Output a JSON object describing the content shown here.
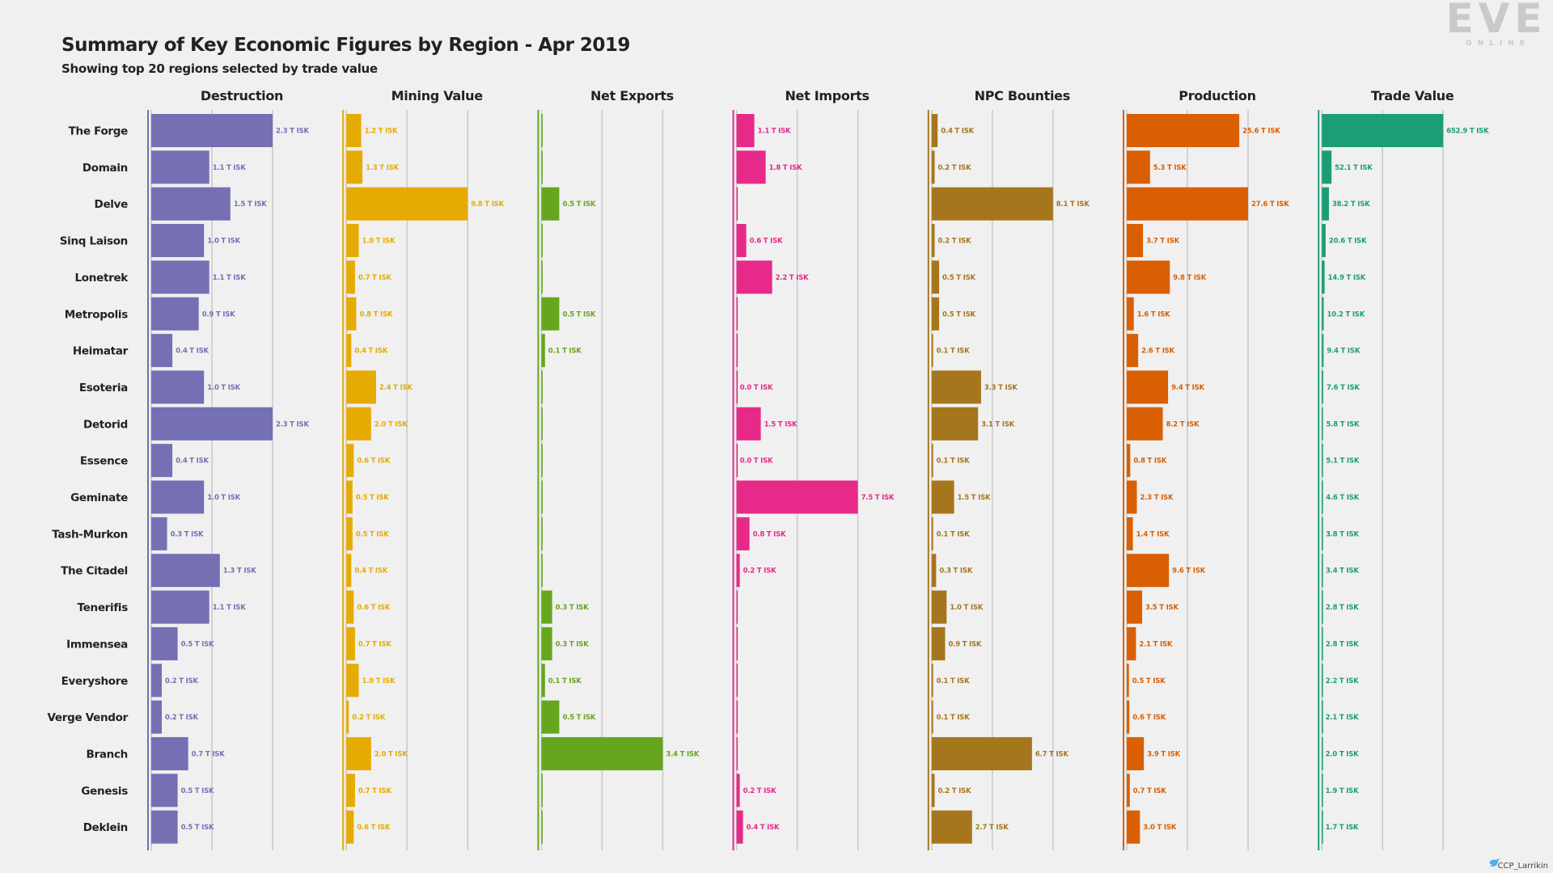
{
  "logo": {
    "main": "EVE",
    "sub": "ONLINE"
  },
  "credit": {
    "icon": "bird-icon",
    "text": "CCP_Larrikin"
  },
  "colors": {
    "Destruction": "#7570b3",
    "Mining Value": "#e6ab02",
    "Net Exports": "#66a61e",
    "Net Imports": "#e7298a",
    "NPC Bounties": "#a6761d",
    "Production": "#d95f02",
    "Trade Value": "#1b9e77"
  },
  "chart_data": {
    "type": "bar",
    "orientation": "horizontal",
    "title": "Summary of Key Economic Figures by Region - Apr 2019",
    "subtitle": "Showing top 20 regions selected by trade value",
    "categories": [
      "The Forge",
      "Domain",
      "Delve",
      "Sinq Laison",
      "Lonetrek",
      "Metropolis",
      "Heimatar",
      "Esoteria",
      "Detorid",
      "Essence",
      "Geminate",
      "Tash-Murkon",
      "The Citadel",
      "Tenerifis",
      "Immensea",
      "Everyshore",
      "Verge Vendor",
      "Branch",
      "Genesis",
      "Deklein"
    ],
    "series": [
      {
        "name": "Destruction",
        "scale_max": 2.3,
        "values": [
          2.3,
          1.1,
          1.5,
          1.0,
          1.1,
          0.9,
          0.4,
          1.0,
          2.3,
          0.4,
          1.0,
          0.3,
          1.3,
          1.1,
          0.5,
          0.2,
          0.2,
          0.7,
          0.5,
          0.5
        ],
        "labels": [
          "2.3 T ISK",
          "1.1 T ISK",
          "1.5 T ISK",
          "1.0 T ISK",
          "1.1 T ISK",
          "0.9 T ISK",
          "0.4 T ISK",
          "1.0 T ISK",
          "2.3 T ISK",
          "0.4 T ISK",
          "1.0 T ISK",
          "0.3 T ISK",
          "1.3 T ISK",
          "1.1 T ISK",
          "0.5 T ISK",
          "0.2 T ISK",
          "0.2 T ISK",
          "0.7 T ISK",
          "0.5 T ISK",
          "0.5 T ISK"
        ]
      },
      {
        "name": "Mining Value",
        "scale_max": 9.8,
        "values": [
          1.2,
          1.3,
          9.8,
          1.0,
          0.7,
          0.8,
          0.4,
          2.4,
          2.0,
          0.6,
          0.5,
          0.5,
          0.4,
          0.6,
          0.7,
          1.0,
          0.2,
          2.0,
          0.7,
          0.6
        ],
        "labels": [
          "1.2 T ISK",
          "1.3 T ISK",
          "9.8 T ISK",
          "1.0 T ISK",
          "0.7 T ISK",
          "0.8 T ISK",
          "0.4 T ISK",
          "2.4 T ISK",
          "2.0 T ISK",
          "0.6 T ISK",
          "0.5 T ISK",
          "0.5 T ISK",
          "0.4 T ISK",
          "0.6 T ISK",
          "0.7 T ISK",
          "1.0 T ISK",
          "0.2 T ISK",
          "2.0 T ISK",
          "0.7 T ISK",
          "0.6 T ISK"
        ]
      },
      {
        "name": "Net Exports",
        "scale_max": 3.4,
        "values": [
          0,
          0,
          0.5,
          0,
          0,
          0.5,
          0.1,
          0,
          0,
          0,
          0,
          0,
          0,
          0.3,
          0.3,
          0.1,
          0.5,
          3.4,
          0,
          0
        ],
        "labels": [
          "",
          "",
          "0.5 T ISK",
          "",
          "",
          "0.5 T ISK",
          "0.1 T ISK",
          "",
          "",
          "",
          "",
          "",
          "",
          "0.3 T ISK",
          "0.3 T ISK",
          "0.1 T ISK",
          "0.5 T ISK",
          "3.4 T ISK",
          "",
          ""
        ]
      },
      {
        "name": "Net Imports",
        "scale_max": 7.5,
        "values": [
          1.1,
          1.8,
          0,
          0.6,
          2.2,
          0,
          0,
          0.0,
          1.5,
          0.0,
          7.5,
          0.8,
          0.2,
          0,
          0,
          0,
          0,
          0,
          0.2,
          0.4
        ],
        "labels": [
          "1.1 T ISK",
          "1.8 T ISK",
          "",
          "0.6 T ISK",
          "2.2 T ISK",
          "",
          "",
          "0.0 T ISK",
          "1.5 T ISK",
          "0.0 T ISK",
          "7.5 T ISK",
          "0.8 T ISK",
          "0.2 T ISK",
          "",
          "",
          "",
          "",
          "",
          "0.2 T ISK",
          "0.4 T ISK"
        ]
      },
      {
        "name": "NPC Bounties",
        "scale_max": 8.1,
        "values": [
          0.4,
          0.2,
          8.1,
          0.2,
          0.5,
          0.5,
          0.1,
          3.3,
          3.1,
          0.1,
          1.5,
          0.1,
          0.3,
          1.0,
          0.9,
          0.1,
          0.1,
          6.7,
          0.2,
          2.7
        ],
        "labels": [
          "0.4 T ISK",
          "0.2 T ISK",
          "8.1 T ISK",
          "0.2 T ISK",
          "0.5 T ISK",
          "0.5 T ISK",
          "0.1 T ISK",
          "3.3 T ISK",
          "3.1 T ISK",
          "0.1 T ISK",
          "1.5 T ISK",
          "0.1 T ISK",
          "0.3 T ISK",
          "1.0 T ISK",
          "0.9 T ISK",
          "0.1 T ISK",
          "0.1 T ISK",
          "6.7 T ISK",
          "0.2 T ISK",
          "2.7 T ISK"
        ]
      },
      {
        "name": "Production",
        "scale_max": 27.6,
        "values": [
          25.6,
          5.3,
          27.6,
          3.7,
          9.8,
          1.6,
          2.6,
          9.4,
          8.2,
          0.8,
          2.3,
          1.4,
          9.6,
          3.5,
          2.1,
          0.5,
          0.6,
          3.9,
          0.7,
          3.0
        ],
        "labels": [
          "25.6 T ISK",
          "5.3 T ISK",
          "27.6 T ISK",
          "3.7 T ISK",
          "9.8 T ISK",
          "1.6 T ISK",
          "2.6 T ISK",
          "9.4 T ISK",
          "8.2 T ISK",
          "0.8 T ISK",
          "2.3 T ISK",
          "1.4 T ISK",
          "9.6 T ISK",
          "3.5 T ISK",
          "2.1 T ISK",
          "0.5 T ISK",
          "0.6 T ISK",
          "3.9 T ISK",
          "0.7 T ISK",
          "3.0 T ISK"
        ]
      },
      {
        "name": "Trade Value",
        "scale_max": 652.9,
        "values": [
          652.9,
          52.1,
          38.2,
          20.6,
          14.9,
          10.2,
          9.4,
          7.6,
          5.8,
          5.1,
          4.6,
          3.8,
          3.4,
          2.8,
          2.8,
          2.2,
          2.1,
          2.0,
          1.9,
          1.7
        ],
        "labels": [
          "652.9 T ISK",
          "52.1 T ISK",
          "38.2 T ISK",
          "20.6 T ISK",
          "14.9 T ISK",
          "10.2 T ISK",
          "9.4 T ISK",
          "7.6 T ISK",
          "5.8 T ISK",
          "5.1 T ISK",
          "4.6 T ISK",
          "3.8 T ISK",
          "3.4 T ISK",
          "2.8 T ISK",
          "2.8 T ISK",
          "2.2 T ISK",
          "2.1 T ISK",
          "2.0 T ISK",
          "1.9 T ISK",
          "1.7 T ISK"
        ]
      }
    ]
  }
}
